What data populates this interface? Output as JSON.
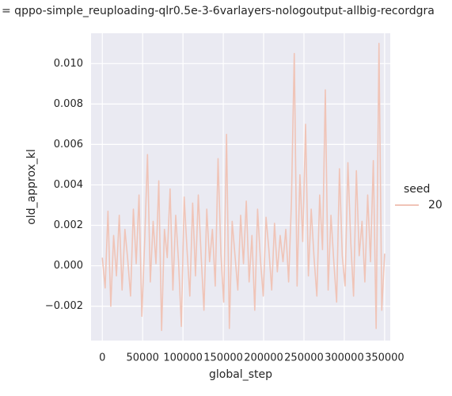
{
  "chart_data": {
    "type": "line",
    "title": "= qppo-simple_reuploading-qlr0.5e-3-6varlayers-nologoutput-allbig-recordgra",
    "xlabel": "global_step",
    "ylabel": "old_approx_kl",
    "legend_title": "seed",
    "legend": "right",
    "grid": true,
    "xlim": [
      -14000,
      357000
    ],
    "ylim": [
      -0.0037,
      0.0115
    ],
    "xticks": [
      0,
      50000,
      100000,
      150000,
      200000,
      250000,
      300000,
      350000
    ],
    "yticks": [
      {
        "value": -0.002,
        "label": "−0.002"
      },
      {
        "value": 0,
        "label": "0.000"
      },
      {
        "value": 0.002,
        "label": "0.002"
      },
      {
        "value": 0.004,
        "label": "0.004"
      },
      {
        "value": 0.006,
        "label": "0.006"
      },
      {
        "value": 0.008,
        "label": "0.008"
      },
      {
        "value": 0.01,
        "label": "0.010"
      }
    ],
    "x": [
      0,
      3500,
      7000,
      10500,
      14000,
      17500,
      21000,
      24500,
      28000,
      31500,
      35000,
      38500,
      42000,
      45500,
      49000,
      52500,
      56000,
      59500,
      63000,
      66500,
      70000,
      73500,
      77000,
      80500,
      84000,
      87500,
      91000,
      94500,
      98000,
      101500,
      105000,
      108500,
      112000,
      115500,
      119000,
      122500,
      126000,
      129500,
      133000,
      136500,
      140000,
      143500,
      147000,
      150500,
      154000,
      157500,
      161000,
      164500,
      168000,
      171500,
      175000,
      178500,
      182000,
      185500,
      189000,
      192500,
      196000,
      199500,
      203000,
      206500,
      210000,
      213500,
      217000,
      220500,
      224000,
      227500,
      231000,
      234500,
      238000,
      241500,
      245000,
      248500,
      252000,
      255500,
      259000,
      262500,
      266000,
      269500,
      273000,
      276500,
      280000,
      283500,
      287000,
      290500,
      294000,
      297500,
      301000,
      304500,
      308000,
      311500,
      315000,
      318500,
      322000,
      325500,
      329000,
      332500,
      336000,
      339500,
      343000,
      346500,
      350000
    ],
    "series": [
      {
        "name": "20",
        "color": "#f0c4b7",
        "values": [
          0.0004,
          -0.0011,
          0.0027,
          -0.002,
          0.0015,
          -0.0005,
          0.0025,
          -0.0012,
          0.0018,
          0.0003,
          -0.0015,
          0.0028,
          0.0001,
          0.0035,
          -0.0025,
          0.0012,
          0.0055,
          -0.0008,
          0.0022,
          0.0001,
          0.0042,
          -0.0032,
          0.0018,
          0.0004,
          0.0038,
          -0.0012,
          0.0025,
          0.0002,
          -0.003,
          0.0034,
          0.0008,
          -0.0015,
          0.0031,
          -0.0005,
          0.0035,
          0.0005,
          -0.0022,
          0.0028,
          0.0002,
          0.0018,
          -0.001,
          0.0053,
          0.0006,
          -0.0018,
          0.0065,
          -0.0031,
          0.0022,
          0.0005,
          -0.0012,
          0.0025,
          0.0001,
          0.0032,
          -0.0008,
          0.0015,
          -0.0022,
          0.0028,
          0.0003,
          -0.0015,
          0.0024,
          0.0008,
          -0.0012,
          0.0021,
          -0.0003,
          0.0015,
          0.0002,
          0.0018,
          -0.0008,
          0.0032,
          0.0105,
          -0.001,
          0.0045,
          0.0012,
          0.007,
          -0.0005,
          0.0028,
          0.0004,
          -0.0015,
          0.0035,
          0.0008,
          0.0087,
          -0.0012,
          0.0025,
          0.0002,
          -0.0018,
          0.0048,
          0.0005,
          -0.001,
          0.0051,
          0.0012,
          -0.0015,
          0.0047,
          0.0005,
          0.0022,
          -0.0008,
          0.0035,
          0.0002,
          0.0052,
          -0.0031,
          0.011,
          -0.0022,
          0.0006
        ]
      }
    ]
  }
}
